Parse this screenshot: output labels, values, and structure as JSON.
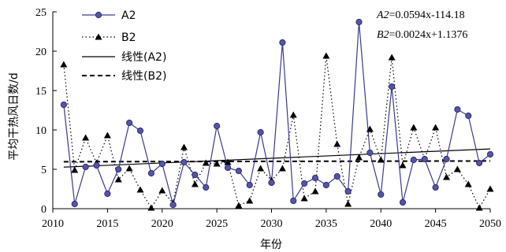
{
  "chart_data": {
    "type": "line",
    "title": "",
    "xlabel": "年份",
    "ylabel": "平均干热风日数/d",
    "xlim": [
      2010,
      2050
    ],
    "ylim": [
      0,
      25
    ],
    "xticks": [
      2010,
      2015,
      2020,
      2025,
      2030,
      2035,
      2040,
      2045,
      2050
    ],
    "yticks": [
      0,
      5,
      10,
      15,
      20,
      25
    ],
    "grid": false,
    "legend_position": "top-left",
    "x": [
      2011,
      2012,
      2013,
      2014,
      2015,
      2016,
      2017,
      2018,
      2019,
      2020,
      2021,
      2022,
      2023,
      2024,
      2025,
      2026,
      2027,
      2028,
      2029,
      2030,
      2031,
      2032,
      2033,
      2034,
      2035,
      2036,
      2037,
      2038,
      2039,
      2040,
      2041,
      2042,
      2043,
      2044,
      2045,
      2046,
      2047,
      2048,
      2049,
      2050
    ],
    "series": [
      {
        "name": "A2",
        "color": "#3a3a8c",
        "style": "solid-circle",
        "values": [
          13.2,
          0.6,
          5.3,
          5.5,
          1.9,
          5.0,
          10.9,
          9.9,
          4.5,
          5.7,
          0.5,
          5.9,
          4.3,
          2.7,
          10.5,
          5.2,
          4.8,
          3.0,
          9.7,
          3.3,
          21.1,
          1.0,
          3.2,
          3.9,
          3.0,
          4.1,
          2.2,
          23.7,
          7.1,
          1.8,
          15.5,
          0.8,
          6.2,
          6.3,
          2.7,
          6.3,
          12.6,
          11.8,
          5.8,
          6.9
        ]
      },
      {
        "name": "B2",
        "color": "#000000",
        "style": "dotted-triangle",
        "values": [
          18.3,
          4.9,
          9.0,
          5.8,
          9.3,
          3.7,
          5.1,
          2.4,
          0.1,
          2.3,
          0.7,
          7.8,
          3.1,
          5.8,
          5.7,
          5.9,
          0.4,
          1.0,
          5.1,
          3.6,
          5.1,
          11.9,
          1.3,
          2.2,
          19.4,
          8.2,
          0.6,
          6.5,
          10.1,
          6.2,
          19.2,
          5.5,
          10.3,
          6.3,
          10.3,
          4.0,
          5.0,
          3.1,
          0.1,
          2.5
        ]
      }
    ],
    "trendlines": [
      {
        "name": "线性(A2)",
        "style": "solid",
        "slope": 0.0594,
        "intercept": -114.18
      },
      {
        "name": "线性(B2)",
        "style": "dashed",
        "slope": 0.0024,
        "intercept": 1.1376
      }
    ],
    "equations": [
      {
        "label": "A2",
        "expr": "=0.0594x-114.18"
      },
      {
        "label": "B2",
        "expr": "=0.0024x+1.1376"
      }
    ]
  }
}
